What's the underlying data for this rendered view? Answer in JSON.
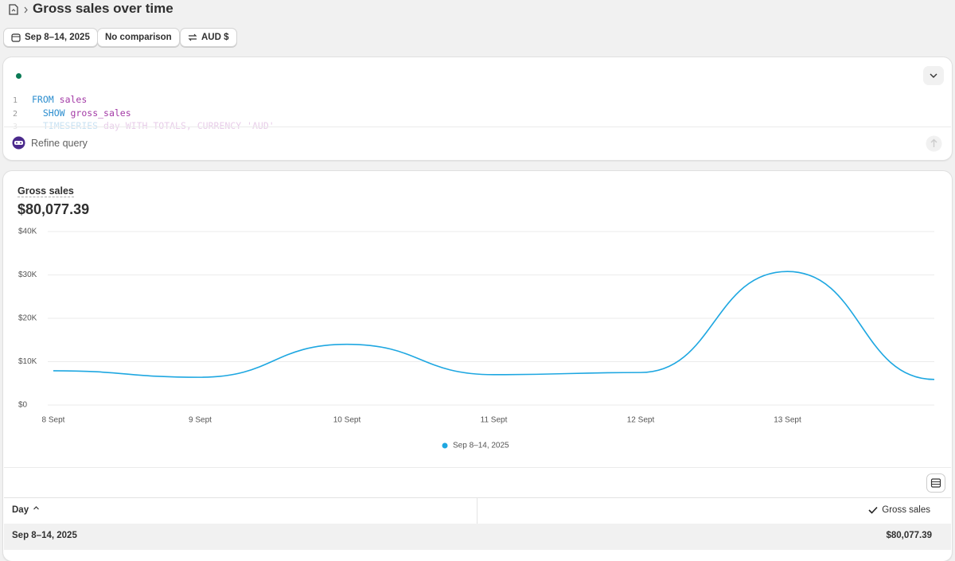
{
  "header": {
    "title": "Gross sales over time"
  },
  "filters": [
    "Sep 8–14, 2025",
    "No comparison",
    "AUD $"
  ],
  "query": {
    "lines": [
      {
        "number": 1,
        "keyword": "FROM",
        "rest": "sales"
      },
      {
        "number": 2,
        "keyword": "SHOW",
        "rest": "gross_sales"
      },
      {
        "number": 3,
        "keyword": "TIMESERIES",
        "rest": "day WITH TOTALS, CURRENCY 'AUD'"
      }
    ],
    "refine_placeholder": "Refine query"
  },
  "chart_data": {
    "type": "line",
    "title": "Gross sales",
    "summary": "$80,077.39",
    "categories": [
      "8 Sept",
      "9 Sept",
      "10 Sept",
      "11 Sept",
      "12 Sept",
      "13 Sept",
      null
    ],
    "series": [
      {
        "name": "Sep 8–14, 2025",
        "color": "#1ea7e1",
        "values": [
          7900,
          6400,
          14000,
          7000,
          7500,
          30800,
          5900
        ]
      }
    ],
    "ylim": [
      0,
      40000
    ],
    "yticks": [
      {
        "value": 0,
        "label": "$0"
      },
      {
        "value": 10000,
        "label": "$10K"
      },
      {
        "value": 20000,
        "label": "$20K"
      },
      {
        "value": 30000,
        "label": "$30K"
      },
      {
        "value": 40000,
        "label": "$40K"
      }
    ],
    "grid": true
  },
  "table": {
    "columns": [
      "Day",
      "Gross sales"
    ],
    "rows": [
      [
        "Sep 8–14, 2025",
        "$80,077.39"
      ]
    ]
  }
}
